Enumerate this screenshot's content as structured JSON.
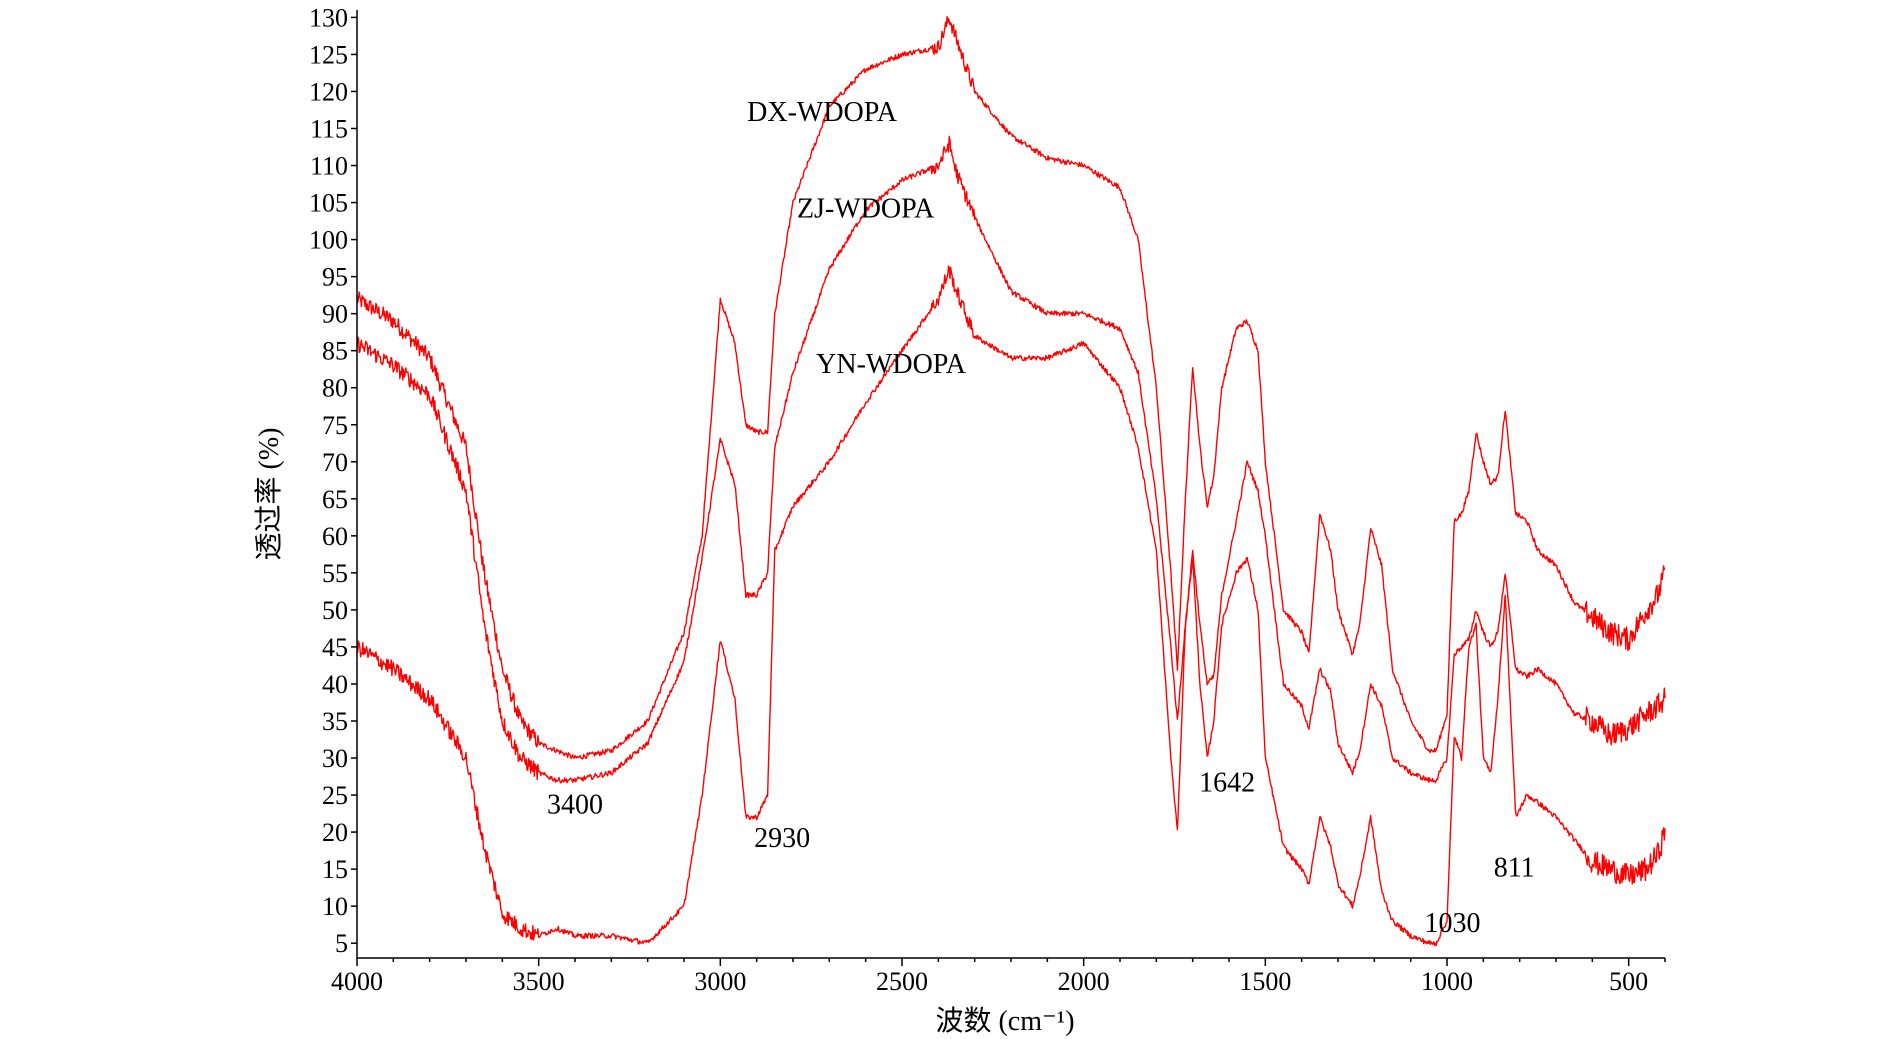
{
  "chart_data": {
    "type": "line",
    "title": "",
    "xlabel": "波数 (cm⁻¹)",
    "ylabel": "透过率 (%)",
    "xlim": [
      4000,
      400
    ],
    "ylim": [
      3,
      131
    ],
    "x_ticks": [
      4000,
      3500,
      3000,
      2500,
      2000,
      1500,
      1000,
      500
    ],
    "y_ticks": [
      5,
      10,
      15,
      20,
      25,
      30,
      35,
      40,
      45,
      50,
      55,
      60,
      65,
      70,
      75,
      80,
      85,
      90,
      95,
      100,
      105,
      110,
      115,
      120,
      125,
      130
    ],
    "grid": false,
    "legend": "none",
    "color": "#ff0000",
    "series": [
      {
        "name": "DX-WDOPA",
        "x": [
          4000,
          3900,
          3800,
          3700,
          3650,
          3600,
          3550,
          3500,
          3450,
          3400,
          3300,
          3200,
          3100,
          3050,
          3000,
          2960,
          2930,
          2900,
          2870,
          2850,
          2800,
          2700,
          2600,
          2500,
          2400,
          2370,
          2350,
          2300,
          2200,
          2100,
          2000,
          1900,
          1850,
          1800,
          1760,
          1742,
          1720,
          1700,
          1680,
          1660,
          1642,
          1620,
          1580,
          1550,
          1520,
          1500,
          1450,
          1400,
          1380,
          1350,
          1320,
          1300,
          1260,
          1240,
          1210,
          1180,
          1150,
          1100,
          1050,
          1030,
          1000,
          980,
          960,
          940,
          920,
          900,
          880,
          860,
          840,
          811,
          780,
          750,
          700,
          650,
          600,
          550,
          500,
          450,
          420,
          400
        ],
        "y": [
          92,
          89,
          84,
          72,
          55,
          42,
          35,
          32,
          31,
          30,
          31,
          35,
          47,
          60,
          92,
          86,
          75,
          74,
          74,
          90,
          105,
          118,
          123,
          125,
          126,
          130,
          127,
          120,
          114,
          111,
          110,
          107,
          100,
          80,
          55,
          42,
          65,
          83,
          72,
          64,
          68,
          80,
          88,
          89,
          85,
          70,
          50,
          47,
          44,
          63,
          58,
          50,
          44,
          48,
          61,
          56,
          42,
          35,
          31,
          31,
          36,
          62,
          63,
          66,
          74,
          70,
          67,
          68,
          77,
          63,
          62,
          58,
          56,
          51,
          49,
          47,
          46,
          50,
          52,
          55
        ]
      },
      {
        "name": "ZJ-WDOPA",
        "x": [
          4000,
          3900,
          3800,
          3700,
          3650,
          3600,
          3550,
          3500,
          3450,
          3400,
          3300,
          3200,
          3100,
          3050,
          3000,
          2960,
          2930,
          2900,
          2870,
          2850,
          2800,
          2700,
          2600,
          2500,
          2400,
          2370,
          2350,
          2300,
          2200,
          2100,
          2000,
          1900,
          1850,
          1800,
          1760,
          1742,
          1720,
          1700,
          1680,
          1660,
          1642,
          1620,
          1580,
          1550,
          1520,
          1500,
          1450,
          1400,
          1380,
          1350,
          1320,
          1300,
          1260,
          1240,
          1210,
          1180,
          1150,
          1100,
          1050,
          1030,
          1000,
          980,
          960,
          940,
          920,
          900,
          880,
          860,
          840,
          811,
          780,
          750,
          700,
          650,
          600,
          550,
          500,
          450,
          420,
          400
        ],
        "y": [
          86,
          83,
          79,
          66,
          48,
          35,
          30,
          28,
          27,
          27,
          28,
          32,
          43,
          57,
          73,
          67,
          52,
          52,
          55,
          72,
          82,
          96,
          104,
          108,
          110,
          113,
          109,
          103,
          93,
          90,
          90,
          88,
          82,
          65,
          45,
          35,
          48,
          58,
          48,
          40,
          41,
          52,
          62,
          70,
          66,
          60,
          40,
          37,
          34,
          42,
          39,
          32,
          28,
          31,
          40,
          37,
          30,
          28,
          27,
          27,
          30,
          44,
          45,
          46,
          50,
          47,
          45,
          47,
          55,
          42,
          41,
          42,
          40,
          36,
          35,
          33,
          34,
          36,
          37,
          38
        ]
      },
      {
        "name": "YN-WDOPA",
        "x": [
          4000,
          3900,
          3800,
          3700,
          3650,
          3600,
          3550,
          3500,
          3450,
          3400,
          3300,
          3200,
          3100,
          3050,
          3000,
          2960,
          2930,
          2900,
          2870,
          2850,
          2800,
          2700,
          2600,
          2500,
          2400,
          2370,
          2350,
          2300,
          2200,
          2100,
          2000,
          1900,
          1850,
          1800,
          1760,
          1742,
          1720,
          1700,
          1680,
          1660,
          1642,
          1620,
          1580,
          1550,
          1520,
          1500,
          1450,
          1400,
          1380,
          1350,
          1320,
          1300,
          1260,
          1240,
          1210,
          1180,
          1150,
          1100,
          1050,
          1030,
          1000,
          980,
          960,
          940,
          920,
          900,
          880,
          860,
          840,
          811,
          780,
          750,
          700,
          650,
          600,
          550,
          500,
          450,
          420,
          400
        ],
        "y": [
          45,
          42,
          38,
          30,
          18,
          9,
          7,
          6,
          7,
          6,
          6,
          5,
          10,
          25,
          46,
          38,
          22,
          22,
          25,
          58,
          64,
          70,
          78,
          85,
          92,
          96,
          93,
          87,
          84,
          84,
          86,
          80,
          72,
          58,
          30,
          20,
          48,
          57,
          40,
          30,
          35,
          48,
          55,
          57,
          50,
          30,
          18,
          15,
          13,
          22,
          18,
          13,
          10,
          14,
          22,
          12,
          8,
          6,
          5,
          5,
          8,
          33,
          30,
          45,
          48,
          30,
          28,
          38,
          52,
          22,
          25,
          24,
          22,
          19,
          16,
          15,
          14,
          15,
          17,
          20
        ]
      }
    ],
    "annotations": [
      {
        "text": "DX-WDOPA",
        "x": 2720,
        "y": 116
      },
      {
        "text": "ZJ-WDOPA",
        "x": 2600,
        "y": 103
      },
      {
        "text": "YN-WDOPA",
        "x": 2530,
        "y": 82
      },
      {
        "text": "3400",
        "x": 3400,
        "y": 22.5
      },
      {
        "text": "2930",
        "x": 2830,
        "y": 18
      },
      {
        "text": "1642",
        "x": 1605,
        "y": 25.5
      },
      {
        "text": "1030",
        "x": 985,
        "y": 6.5
      },
      {
        "text": "811",
        "x": 815,
        "y": 14
      }
    ]
  }
}
